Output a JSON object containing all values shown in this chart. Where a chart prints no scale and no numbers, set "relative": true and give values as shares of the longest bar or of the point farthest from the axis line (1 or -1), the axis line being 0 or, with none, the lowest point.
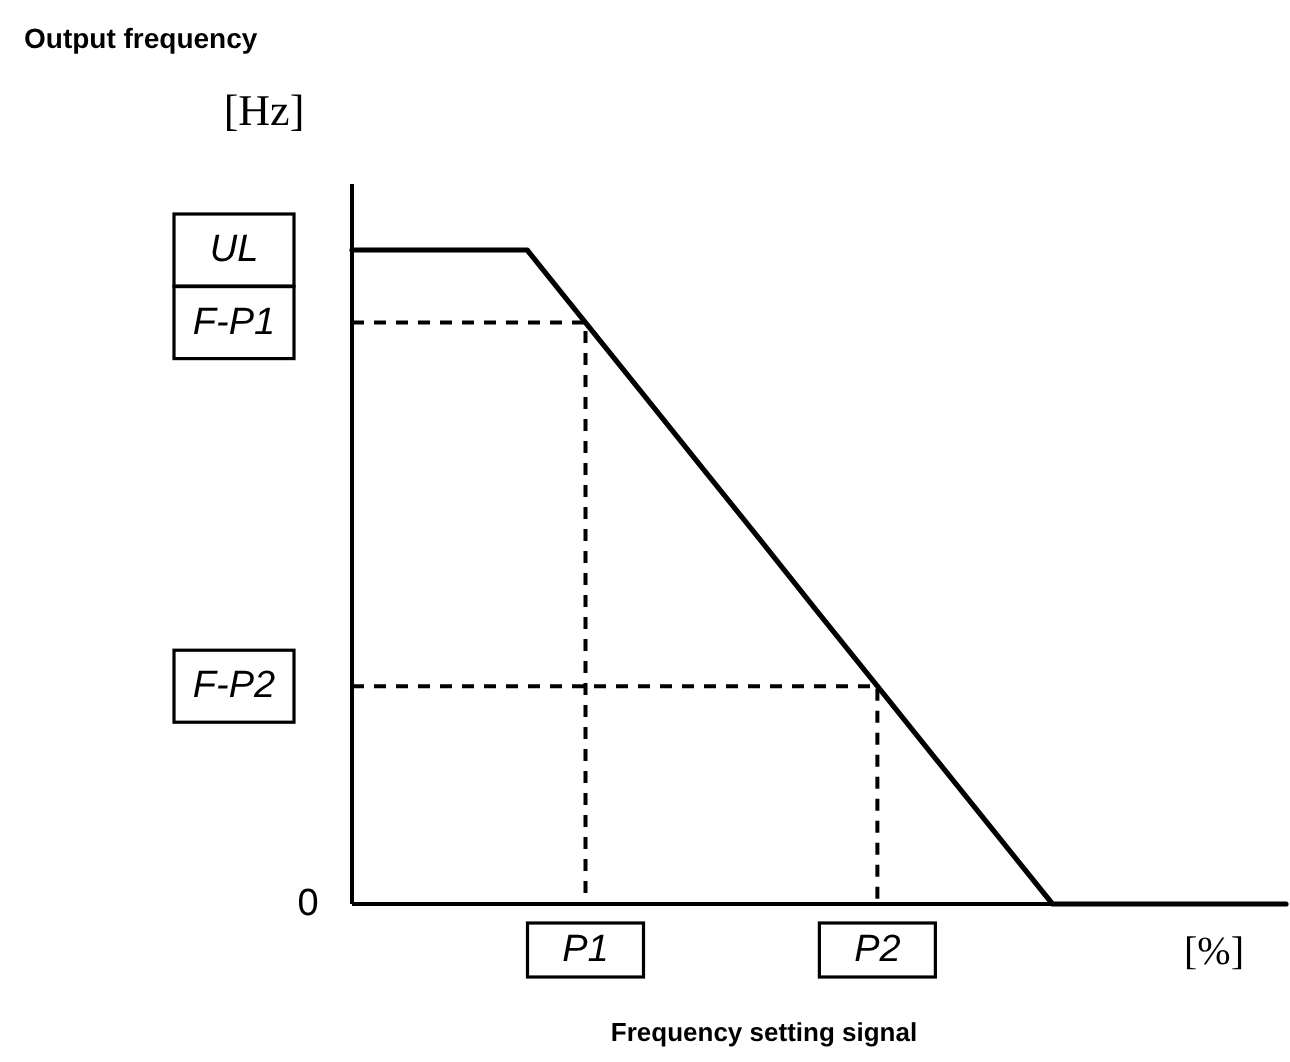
{
  "chart_data": {
    "type": "line",
    "xlabel": "Frequency setting signal",
    "relative": true,
    "categories": [
      null,
      null,
      null,
      null,
      "P1",
      null,
      null,
      null,
      null,
      "P2",
      null,
      null,
      null,
      null,
      null,
      null,
      null
    ],
    "series": [
      {
        "color": "#000000",
        "values": [
          1,
          1,
          1,
          1,
          0.889,
          0.778,
          0.667,
          0.556,
          0.444,
          0.333,
          0.222,
          0.111,
          0,
          0,
          0,
          0,
          0
        ]
      }
    ],
    "ref_lines": [
      {
        "axis": "y",
        "value": 0.889,
        "label": "F-P1",
        "line_style": "dashed"
      },
      {
        "axis": "y",
        "value": 0.333,
        "label": "F-P2",
        "line_style": "dashed"
      }
    ],
    "annotations": [
      "Output frequency",
      "[Hz]",
      "UL",
      "0",
      "[%]"
    ]
  }
}
